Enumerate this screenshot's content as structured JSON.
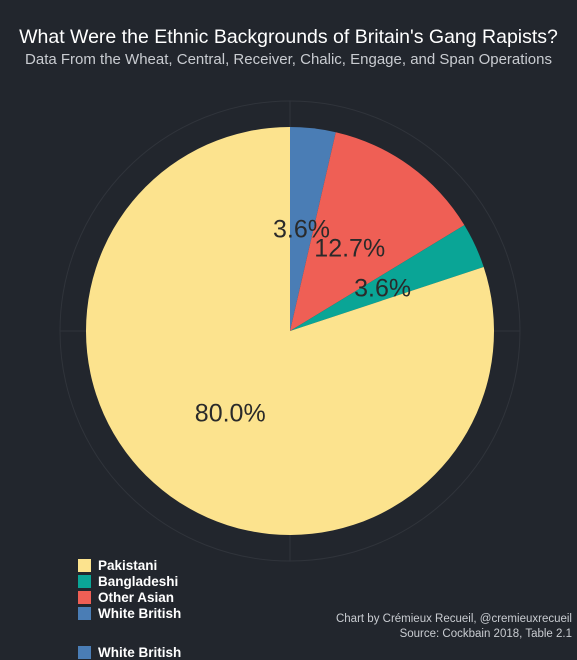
{
  "colors": {
    "background": "#22262d",
    "gridline": "#30343b"
  },
  "chart_data": {
    "type": "pie",
    "title": "What Were the Ethnic Backgrounds of Britain's Gang Rapists?",
    "subtitle": "Data From the Wheat, Central, Receiver, Chalic, Engage, and Span Operations",
    "start_angle_deg": 0,
    "direction": "clockwise",
    "grid": true,
    "legend_position": "bottom-left",
    "slices": [
      {
        "name": "White British",
        "value": 3.6,
        "label": "3.6%",
        "color": "#4a7db5"
      },
      {
        "name": "Other Asian",
        "value": 12.7,
        "label": "12.7%",
        "color": "#ef5f55"
      },
      {
        "name": "Bangladeshi",
        "value": 3.6,
        "label": "3.6%",
        "color": "#0aa596"
      },
      {
        "name": "Pakistani",
        "value": 80.0,
        "label": "80.0%",
        "color": "#fce38e"
      }
    ],
    "legend_order": [
      "Pakistani",
      "Bangladeshi",
      "Other Asian",
      "White British"
    ],
    "partially_visible_legend_entry": {
      "name": "White British",
      "color": "#4a7db5"
    }
  },
  "caption": {
    "credit": "Chart by Crémieux Recueil, @cremieuxrecueil",
    "source": "Source: Cockbain 2018, Table 2.1"
  }
}
